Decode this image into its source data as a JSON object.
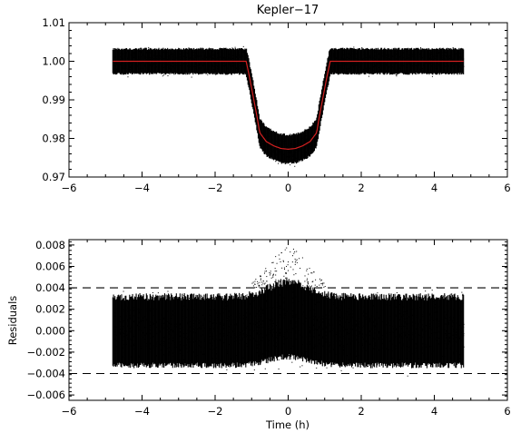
{
  "title": "Kepler−17",
  "chart_data": [
    {
      "type": "scatter",
      "panel": "top",
      "title": "Kepler−17",
      "xlabel": "",
      "ylabel": "",
      "xlim": [
        -6,
        6
      ],
      "ylim": [
        0.97,
        1.01
      ],
      "x_ticks": [
        -6,
        -4,
        -2,
        0,
        2,
        4,
        6
      ],
      "x_tick_labels": [
        "−6",
        "−4",
        "−2",
        "0",
        "2",
        "4",
        "6"
      ],
      "y_ticks": [
        0.97,
        0.98,
        0.99,
        1.0,
        1.01
      ],
      "y_tick_labels": [
        "0.97",
        "0.98",
        "0.99",
        "1.00",
        "1.01"
      ],
      "grid": false,
      "series": [
        {
          "kind": "points",
          "color": "#000000",
          "x_range": [
            -4.8,
            4.8
          ],
          "out_of_transit_flux": 1.0,
          "out_of_transit_scatter": 0.0035,
          "ingress_start": -1.15,
          "ingress_end": -0.78,
          "egress_start": 0.78,
          "egress_end": 1.15,
          "transit_depth_center": 0.9772,
          "transit_depth_at_second_contact": 0.9815,
          "in_transit_scatter": 0.004
        },
        {
          "kind": "model",
          "color": "#d42020",
          "x": [
            -4.8,
            -1.15,
            -1.05,
            -0.95,
            -0.85,
            -0.78,
            -0.6,
            -0.4,
            -0.2,
            0,
            0.2,
            0.4,
            0.6,
            0.78,
            0.85,
            0.95,
            1.05,
            1.15,
            4.8
          ],
          "y": [
            1.0,
            1.0,
            0.9955,
            0.9905,
            0.9855,
            0.9815,
            0.9792,
            0.9781,
            0.9774,
            0.9772,
            0.9774,
            0.9781,
            0.9792,
            0.9815,
            0.9855,
            0.9905,
            0.9955,
            1.0,
            1.0
          ]
        }
      ]
    },
    {
      "type": "scatter",
      "panel": "bottom",
      "title": "",
      "xlabel": "Time (h)",
      "ylabel": "Residuals",
      "xlim": [
        -6,
        6
      ],
      "ylim": [
        -0.0065,
        0.0085
      ],
      "x_ticks": [
        -6,
        -4,
        -2,
        0,
        2,
        4,
        6
      ],
      "x_tick_labels": [
        "−6",
        "−4",
        "−2",
        "0",
        "2",
        "4",
        "6"
      ],
      "y_ticks": [
        -0.006,
        -0.004,
        -0.002,
        0.0,
        0.002,
        0.004,
        0.006,
        0.008
      ],
      "y_tick_labels": [
        "−0.006",
        "−0.004",
        "−0.002",
        "0.000",
        "0.002",
        "0.004",
        "0.006",
        "0.008"
      ],
      "grid": false,
      "series": [
        {
          "kind": "points",
          "color": "#000000",
          "x_range": [
            -4.8,
            4.8
          ],
          "residual_scatter": 0.0035,
          "in_transit_offset": 0.0008,
          "in_transit_scatter": 0.0042,
          "max_outlier": 0.0078
        },
        {
          "kind": "threshold",
          "style": "dashed",
          "color": "#000000",
          "values": [
            0.004,
            -0.004
          ]
        }
      ]
    }
  ]
}
